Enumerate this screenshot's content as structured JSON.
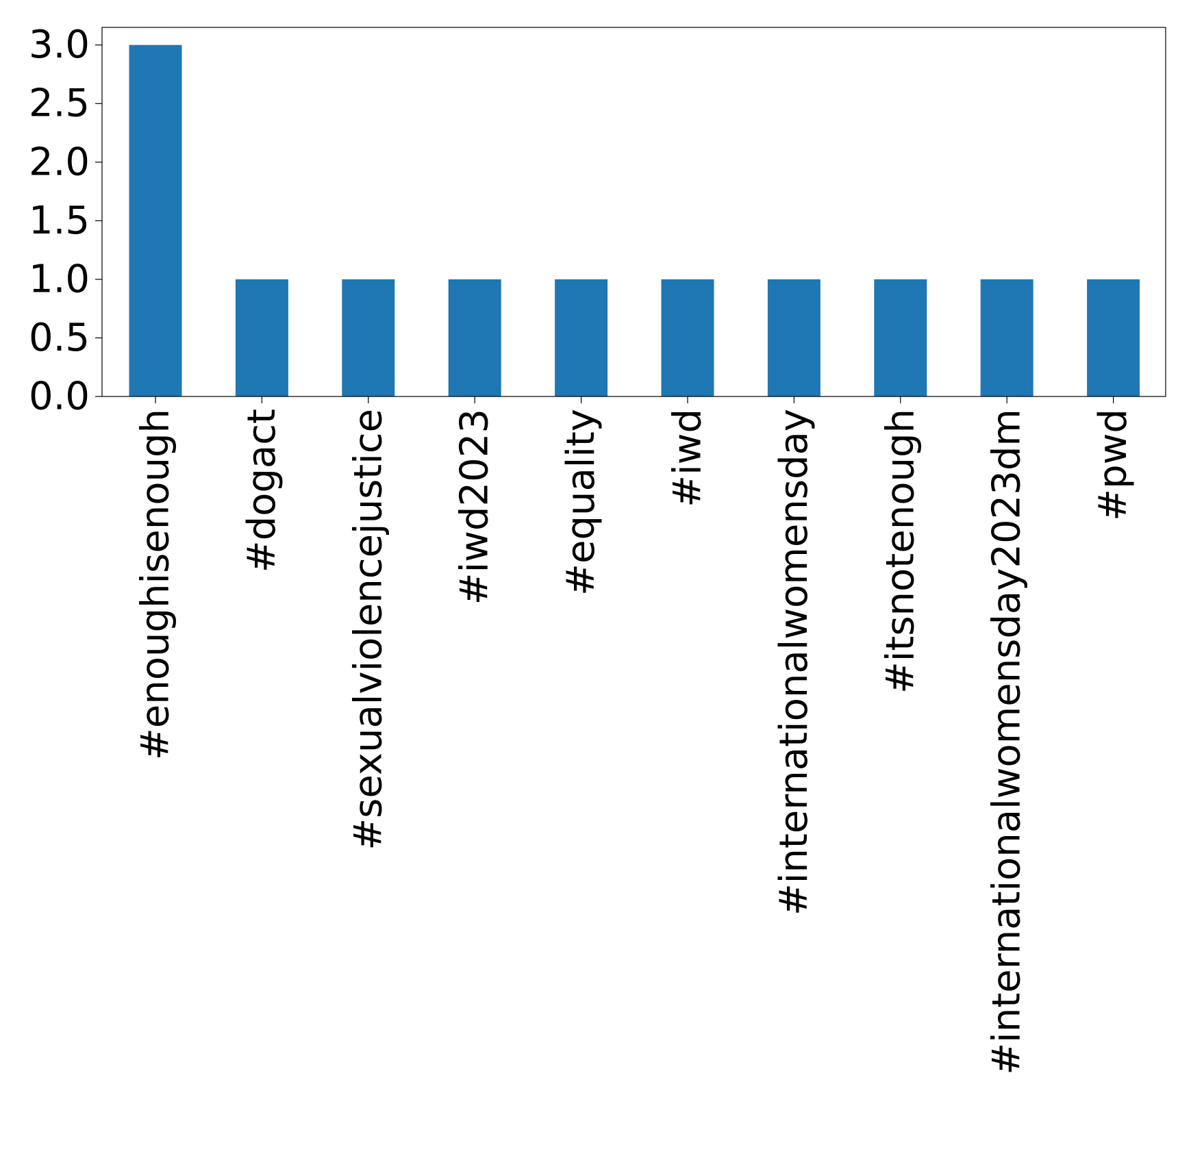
{
  "chart_data": {
    "type": "bar",
    "title": "",
    "xlabel": "",
    "ylabel": "",
    "categories": [
      "#enoughisenough",
      "#dogact",
      "#sexualviolencejustice",
      "#iwd2023",
      "#equality",
      "#iwd",
      "#internationalwomensday",
      "#itsnotenough",
      "#internationalwomensday2023dm",
      "#pwd"
    ],
    "values": [
      3,
      1,
      1,
      1,
      1,
      1,
      1,
      1,
      1,
      1
    ],
    "ylim": [
      0,
      3.15
    ],
    "yticks": [
      0.0,
      0.5,
      1.0,
      1.5,
      2.0,
      2.5,
      3.0
    ],
    "ytick_labels": [
      "0.0",
      "0.5",
      "1.0",
      "1.5",
      "2.0",
      "2.5",
      "3.0"
    ],
    "grid": false,
    "legend": "none",
    "bar_color": "#1f77b4"
  }
}
